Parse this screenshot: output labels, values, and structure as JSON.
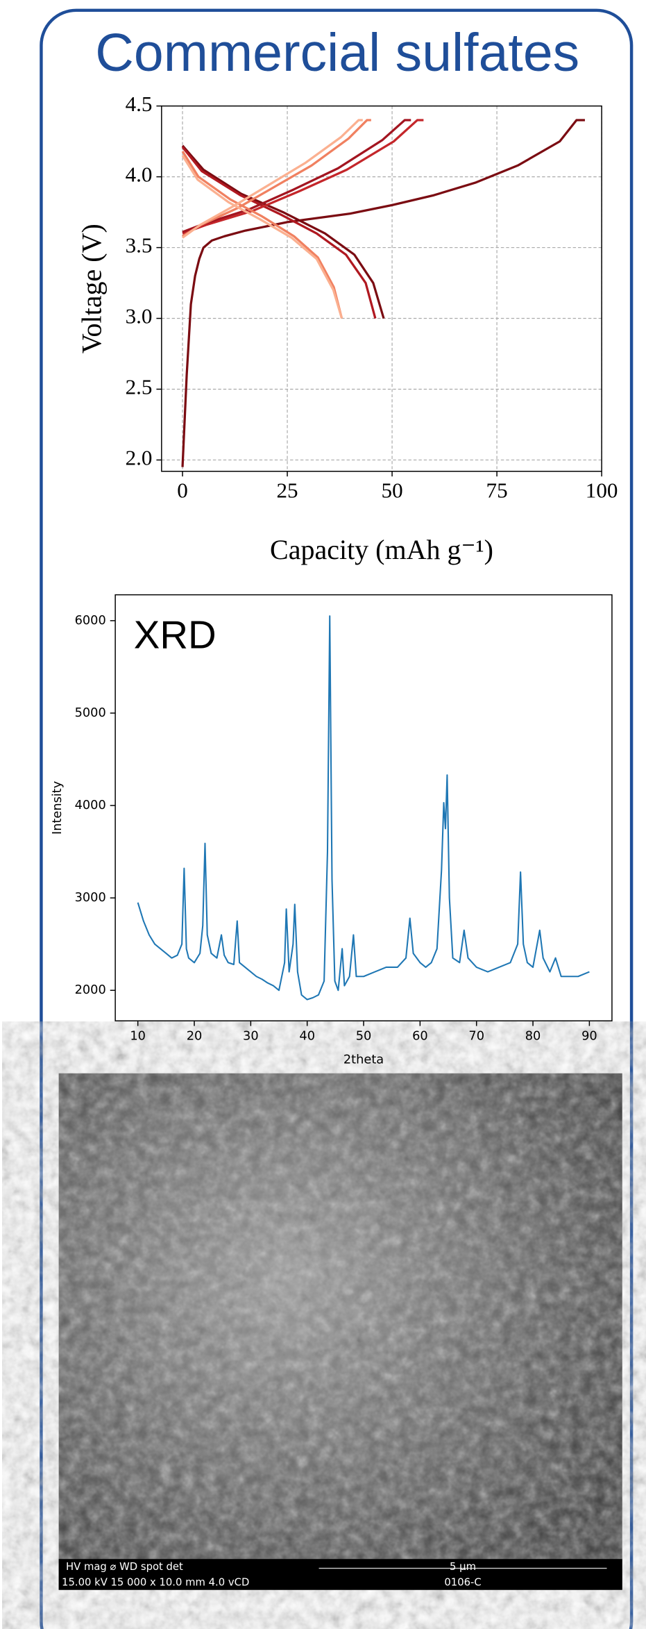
{
  "panel_title": "Commercial sulfates",
  "chart_data": [
    {
      "type": "line",
      "xlabel": "Capacity (mAh g⁻¹)",
      "ylabel": "Voltage (V)",
      "xlim": [
        -5,
        100
      ],
      "ylim": [
        1.92,
        4.5
      ],
      "xticks": [
        0,
        25,
        50,
        75,
        100
      ],
      "yticks": [
        {
          "value": 2.0,
          "label": "2.0"
        },
        2.5,
        {
          "value": 3.0,
          "label": "3.0"
        },
        3.5,
        {
          "value": 4.0,
          "label": "4.0"
        },
        4.5
      ],
      "grid": true,
      "series": [
        {
          "color": "#7b0c12",
          "x": [
            0,
            1,
            2,
            3,
            4,
            5,
            7,
            10,
            15,
            20,
            25,
            30,
            40,
            50,
            60,
            70,
            80,
            90,
            94,
            96
          ],
          "values": [
            1.95,
            2.6,
            3.1,
            3.3,
            3.42,
            3.5,
            3.55,
            3.58,
            3.62,
            3.65,
            3.68,
            3.7,
            3.74,
            3.8,
            3.87,
            3.96,
            4.08,
            4.25,
            4.4,
            4.4
          ]
        },
        {
          "color": "#7b0c12",
          "x": [
            0,
            5,
            14,
            24,
            34,
            41,
            45.5,
            48
          ],
          "values": [
            4.22,
            4.05,
            3.88,
            3.75,
            3.6,
            3.45,
            3.25,
            3.0
          ]
        },
        {
          "color": "#b01820",
          "x": [
            0,
            4.6,
            13.8,
            23,
            32,
            39,
            43.7,
            46
          ],
          "values": [
            4.21,
            4.04,
            3.87,
            3.74,
            3.6,
            3.45,
            3.25,
            3.0
          ]
        },
        {
          "color": "#c4262a",
          "x": [
            0,
            5.6,
            16.8,
            28,
            39.2,
            50.4,
            56,
            57.5
          ],
          "values": [
            3.6,
            3.66,
            3.76,
            3.9,
            4.05,
            4.25,
            4.4,
            4.4
          ]
        },
        {
          "color": "#a31520",
          "x": [
            0,
            5.3,
            15.9,
            26.5,
            37.1,
            47.7,
            53,
            54.5
          ],
          "values": [
            3.61,
            3.67,
            3.77,
            3.91,
            4.06,
            4.26,
            4.4,
            4.4
          ]
        },
        {
          "color": "#f08060",
          "x": [
            0,
            3.8,
            11.4,
            19,
            26.6,
            32.3,
            36.1,
            38
          ],
          "values": [
            4.18,
            4.0,
            3.84,
            3.72,
            3.58,
            3.43,
            3.22,
            3.0
          ]
        },
        {
          "color": "#f08060",
          "x": [
            0,
            4.4,
            13.2,
            22,
            30.8,
            39.6,
            44,
            45
          ],
          "values": [
            3.58,
            3.66,
            3.78,
            3.93,
            4.08,
            4.27,
            4.4,
            4.4
          ]
        },
        {
          "color": "#fbb090",
          "x": [
            0,
            3.6,
            11,
            18.5,
            26,
            32,
            36,
            38
          ],
          "values": [
            4.15,
            3.98,
            3.82,
            3.7,
            3.57,
            3.42,
            3.2,
            3.0
          ]
        },
        {
          "color": "#fbb090",
          "x": [
            0,
            4.2,
            12.6,
            21,
            29.4,
            37.8,
            42,
            43
          ],
          "values": [
            3.57,
            3.66,
            3.8,
            3.95,
            4.1,
            4.28,
            4.4,
            4.4
          ]
        }
      ]
    },
    {
      "type": "line",
      "annotation": "XRD",
      "xlabel": "2theta",
      "ylabel": "Intensity",
      "xlim": [
        6,
        94
      ],
      "ylim": [
        1670,
        6280
      ],
      "xticks": [
        10,
        20,
        30,
        40,
        50,
        60,
        70,
        80,
        90
      ],
      "yticks": [
        2000,
        3000,
        4000,
        5000,
        6000
      ],
      "grid": false,
      "series": [
        {
          "color": "#1f77b4",
          "x": [
            10,
            11,
            12,
            13,
            14,
            15,
            16,
            17,
            17.8,
            18.2,
            18.6,
            19,
            20,
            21,
            21.5,
            21.9,
            22.3,
            23,
            24,
            24.8,
            25.3,
            26,
            27,
            27.6,
            28,
            29,
            30,
            31,
            32,
            33,
            34,
            35,
            36,
            36.3,
            36.8,
            37.5,
            37.8,
            38.3,
            39,
            40,
            41,
            42,
            43,
            43.6,
            44,
            44.4,
            44.9,
            45.5,
            46.2,
            46.6,
            47.5,
            48.2,
            48.7,
            50,
            52,
            54,
            56,
            57.5,
            58.2,
            58.8,
            60,
            61,
            62,
            63,
            63.8,
            64.2,
            64.5,
            64.8,
            65.2,
            65.8,
            67,
            67.8,
            68.5,
            70,
            72,
            74,
            76,
            77.3,
            77.8,
            78.3,
            79,
            80,
            81.2,
            81.8,
            83,
            84,
            85,
            86,
            88,
            90
          ],
          "values": [
            2950,
            2750,
            2600,
            2500,
            2450,
            2400,
            2350,
            2380,
            2500,
            3320,
            2450,
            2350,
            2300,
            2400,
            2700,
            3590,
            2600,
            2400,
            2350,
            2600,
            2380,
            2300,
            2280,
            2750,
            2300,
            2250,
            2200,
            2150,
            2120,
            2080,
            2050,
            2000,
            2300,
            2880,
            2200,
            2500,
            2930,
            2200,
            1950,
            1900,
            1920,
            1950,
            2100,
            3500,
            6050,
            3200,
            2100,
            2000,
            2450,
            2050,
            2150,
            2600,
            2150,
            2150,
            2200,
            2250,
            2250,
            2350,
            2780,
            2400,
            2300,
            2250,
            2300,
            2450,
            3300,
            4030,
            3750,
            4330,
            3000,
            2350,
            2300,
            2650,
            2350,
            2250,
            2200,
            2250,
            2300,
            2500,
            3280,
            2500,
            2300,
            2250,
            2650,
            2350,
            2200,
            2350,
            2150,
            2150,
            2150,
            2200
          ]
        }
      ]
    }
  ],
  "sem": {
    "header": "HV     mag ⌀     WD    spot  det",
    "settings": "15.00 kV 15 000 x 10.0 mm  4.0  vCD",
    "scale": "5 µm",
    "sample": "0106-C"
  }
}
